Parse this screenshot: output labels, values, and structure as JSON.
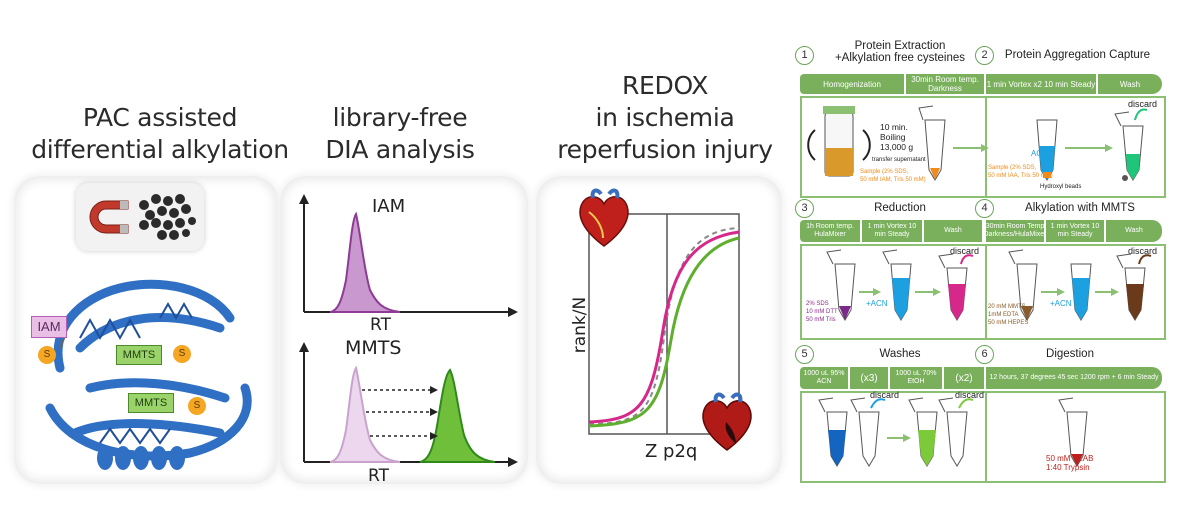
{
  "titles": {
    "pac": [
      "PAC assisted",
      "differential alkylation"
    ],
    "dia": [
      "library-free",
      "DIA analysis"
    ],
    "redox": [
      "REDOX",
      "in ischemia",
      "reperfusion injury"
    ]
  },
  "pac_panel": {
    "iam_label": "IAM",
    "s_label": "S",
    "mmts_label": "MMTS"
  },
  "dia_panel": {
    "top_label": "IAM",
    "bottom_label": "MMTS",
    "axis_label": "RT"
  },
  "redox_panel": {
    "ylabel": "rank/N",
    "xlabel": "Z p2q"
  },
  "workflow": {
    "steps": [
      {
        "num": "1",
        "title": "Protein Extraction\n+Alkylation free cysteines"
      },
      {
        "num": "2",
        "title": "Protein Aggregation Capture"
      },
      {
        "num": "3",
        "title": "Reduction"
      },
      {
        "num": "4",
        "title": "Alkylation with MMTS"
      },
      {
        "num": "5",
        "title": "Washes"
      },
      {
        "num": "6",
        "title": "Digestion"
      }
    ],
    "row1_bar": [
      "Homogenization",
      "30min Room temp. Darkness",
      "1 min Vortex  x2  10 min Steady",
      "Wash"
    ],
    "row2_bar": [
      "1h Room temp. HulaMixer",
      "1 min Vortex 10 min Steady",
      "Wash",
      "30min Room Temp Darkness/HulaMixer",
      "1 min Vortex 10 min Steady",
      "Wash"
    ],
    "row3_bar": [
      "1000 uL 95% ACN",
      "(x3)",
      "1000 uL 70% EtOH",
      "(x2)",
      "12 hours, 37 degrees 45 sec 1200 rpm + 6 min Steady"
    ],
    "row1_text": {
      "boil": "10 min.\nBoiling\n13,000 g",
      "transfer": "transfer supernatant",
      "sample1": "Sample (2% SDS,\n50 mM IAM, Tris 50 mM)",
      "acn": "ACN",
      "sample2": "Sample (2% SDS,\n50 mM IAA, Tris 50 mM)",
      "beads": "Hydroxyl beads",
      "discard": "discard"
    },
    "row2_text": {
      "reagent3": "2% SDS\n10 mM DTT\n50 mM Tris",
      "acn": "+ACN",
      "discard": "discard",
      "reagent4": "20 mM MMTS\n1mM EDTA\n50 mM HEPES"
    },
    "row3_text": {
      "discard": "discard",
      "digest": "50 mM TEAB\n1:40 Trypsin"
    }
  },
  "colors": {
    "green": "#7ab05c",
    "protein": "#2f6fc4",
    "purple": "#b15fb8",
    "magenta": "#d6288a",
    "dia_green": "#5fae2e",
    "mmts": "#9ad36a",
    "sulfur": "#f5a623"
  }
}
